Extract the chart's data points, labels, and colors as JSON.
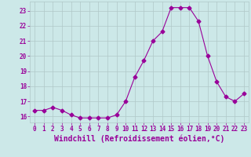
{
  "x": [
    0,
    1,
    2,
    3,
    4,
    5,
    6,
    7,
    8,
    9,
    10,
    11,
    12,
    13,
    14,
    15,
    16,
    17,
    18,
    19,
    20,
    21,
    22,
    23
  ],
  "y": [
    16.4,
    16.4,
    16.6,
    16.4,
    16.1,
    15.9,
    15.9,
    15.9,
    15.9,
    16.1,
    17.0,
    18.6,
    19.7,
    21.0,
    21.6,
    23.2,
    23.2,
    23.2,
    22.3,
    20.0,
    18.3,
    17.3,
    17.0,
    17.5
  ],
  "line_color": "#990099",
  "marker": "D",
  "marker_size": 2.5,
  "bg_color": "#cce8e8",
  "grid_color": "#b0c8c8",
  "xlabel": "Windchill (Refroidissement éolien,°C)",
  "xlabel_fontsize": 7,
  "xlabel_color": "#990099",
  "yticks": [
    16,
    17,
    18,
    19,
    20,
    21,
    22,
    23
  ],
  "xticks": [
    0,
    1,
    2,
    3,
    4,
    5,
    6,
    7,
    8,
    9,
    10,
    11,
    12,
    13,
    14,
    15,
    16,
    17,
    18,
    19,
    20,
    21,
    22,
    23
  ],
  "ylim": [
    15.6,
    23.6
  ],
  "xlim": [
    -0.5,
    23.5
  ],
  "tick_fontsize": 5.5,
  "tick_color": "#990099"
}
